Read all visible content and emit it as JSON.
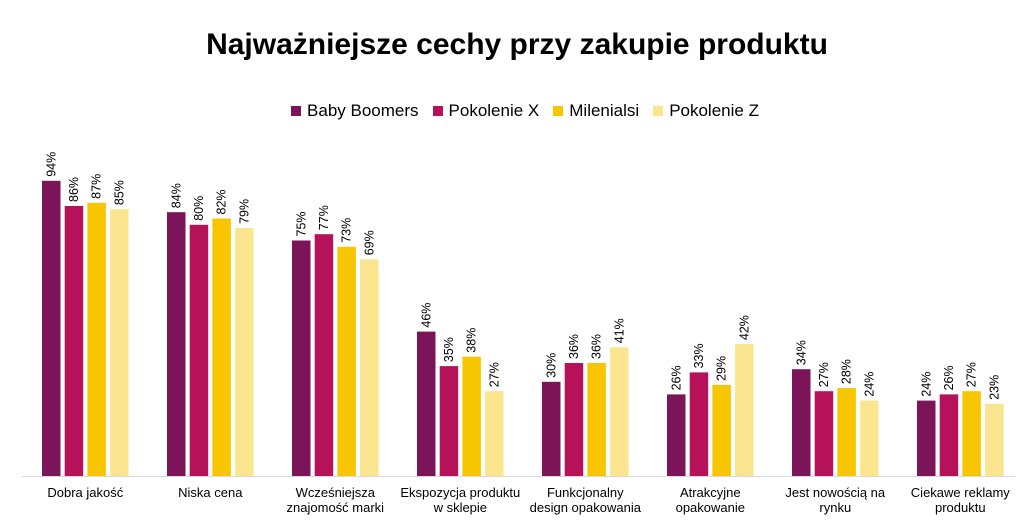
{
  "chart_data": {
    "type": "bar",
    "title": "Najważniejsze cechy przy zakupie produktu",
    "xlabel": "",
    "ylabel": "",
    "ylim": [
      0,
      100
    ],
    "grid": false,
    "legend_position": "top-center",
    "categories": [
      [
        "Dobra jakość"
      ],
      [
        "Niska cena"
      ],
      [
        "Wcześniejsza",
        "znajomość marki"
      ],
      [
        "Ekspozycja produktu",
        "w sklepie"
      ],
      [
        "Funkcjonalny",
        "design opakowania"
      ],
      [
        "Atrakcyjne",
        "opakowanie"
      ],
      [
        "Jest nowością na",
        "rynku"
      ],
      [
        "Ciekawe reklamy",
        "produktu"
      ]
    ],
    "series": [
      {
        "name": "Baby Boomers",
        "color": "#7B1458",
        "values": [
          94,
          84,
          75,
          46,
          30,
          26,
          34,
          24
        ]
      },
      {
        "name": "Pokolenie X",
        "color": "#B5125A",
        "values": [
          86,
          80,
          77,
          35,
          36,
          33,
          27,
          26
        ]
      },
      {
        "name": "Milenialsi",
        "color": "#F7C600",
        "values": [
          87,
          82,
          73,
          38,
          36,
          29,
          28,
          27
        ]
      },
      {
        "name": "Pokolenie Z",
        "color": "#FBE58E",
        "values": [
          85,
          79,
          69,
          27,
          41,
          42,
          24,
          23
        ]
      }
    ],
    "value_suffix": "%"
  }
}
